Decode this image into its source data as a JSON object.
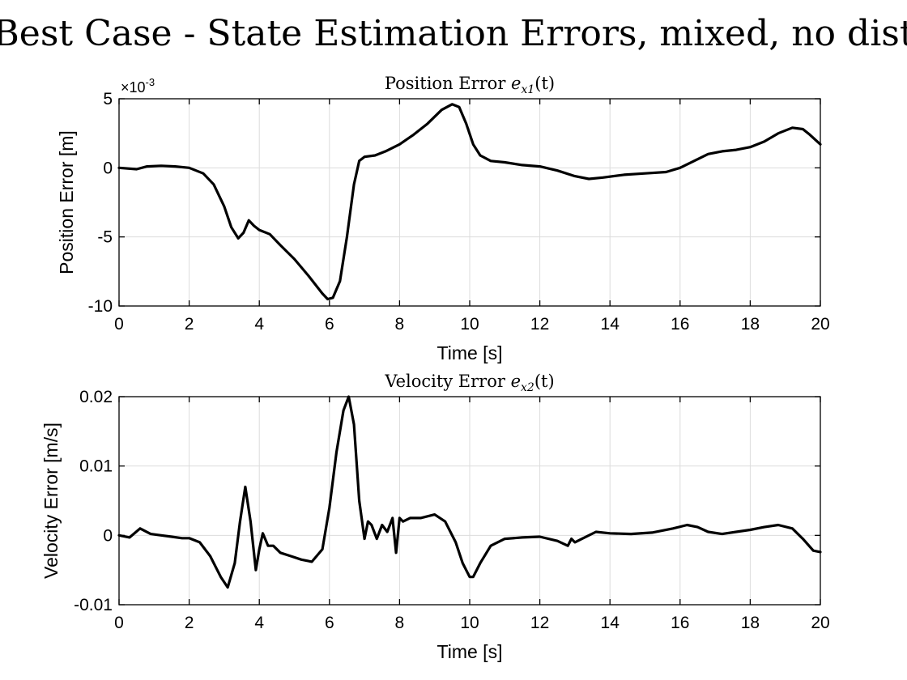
{
  "figure": {
    "title": "Best Case - State Estimation Errors, mixed, no dist"
  },
  "chart_data": [
    {
      "type": "line",
      "title": "Position Error e_x1(t)",
      "title_plain": "Position Error ",
      "title_var": "e",
      "title_sub": "x1",
      "title_tail": "(t)",
      "xlabel": "Time [s]",
      "ylabel": "Position Error [m]",
      "xlim": [
        0,
        20
      ],
      "ylim": [
        -10,
        5
      ],
      "y_exponent_label": "×10-3",
      "y_exponent_base": "×10",
      "y_exponent_power": "-3",
      "xticks": [
        0,
        2,
        4,
        6,
        8,
        10,
        12,
        14,
        16,
        18,
        20
      ],
      "yticks": [
        -10,
        -5,
        0,
        5
      ],
      "grid": true,
      "series": [
        {
          "color": "#000000",
          "x": [
            0,
            0.5,
            0.8,
            1.2,
            1.6,
            2.0,
            2.4,
            2.7,
            3.0,
            3.2,
            3.4,
            3.55,
            3.7,
            3.85,
            4.0,
            4.3,
            4.6,
            5.0,
            5.4,
            5.8,
            5.95,
            6.1,
            6.3,
            6.5,
            6.7,
            6.85,
            7.0,
            7.3,
            7.6,
            8.0,
            8.4,
            8.8,
            9.2,
            9.5,
            9.7,
            9.9,
            10.1,
            10.3,
            10.6,
            11.0,
            11.5,
            12.0,
            12.5,
            13.0,
            13.4,
            13.8,
            14.4,
            15.0,
            15.6,
            16.0,
            16.4,
            16.8,
            17.2,
            17.6,
            18.0,
            18.4,
            18.8,
            19.2,
            19.5,
            19.7,
            20.0
          ],
          "y": [
            0,
            -0.1,
            0.1,
            0.15,
            0.1,
            0,
            -0.4,
            -1.2,
            -2.8,
            -4.3,
            -5.1,
            -4.7,
            -3.8,
            -4.2,
            -4.5,
            -4.8,
            -5.6,
            -6.6,
            -7.8,
            -9.1,
            -9.5,
            -9.4,
            -8.2,
            -5.0,
            -1.2,
            0.5,
            0.8,
            0.9,
            1.2,
            1.7,
            2.4,
            3.2,
            4.2,
            4.6,
            4.4,
            3.2,
            1.7,
            0.9,
            0.5,
            0.4,
            0.2,
            0.1,
            -0.2,
            -0.6,
            -0.8,
            -0.7,
            -0.5,
            -0.4,
            -0.3,
            0,
            0.5,
            1.0,
            1.2,
            1.3,
            1.5,
            1.9,
            2.5,
            2.9,
            2.8,
            2.4,
            1.7
          ]
        }
      ]
    },
    {
      "type": "line",
      "title": "Velocity Error e_x2(t)",
      "title_plain": "Velocity Error ",
      "title_var": "e",
      "title_sub": "x2",
      "title_tail": "(t)",
      "xlabel": "Time [s]",
      "ylabel": "Velocity Error [m/s]",
      "xlim": [
        0,
        20
      ],
      "ylim": [
        -0.01,
        0.02
      ],
      "xticks": [
        0,
        2,
        4,
        6,
        8,
        10,
        12,
        14,
        16,
        18,
        20
      ],
      "yticks": [
        -0.01,
        0,
        0.01,
        0.02
      ],
      "ytick_labels": [
        "-0.01",
        "0",
        "0.01",
        "0.02"
      ],
      "grid": true,
      "series": [
        {
          "color": "#000000",
          "x": [
            0,
            0.3,
            0.6,
            0.9,
            1.2,
            1.5,
            1.8,
            2.0,
            2.3,
            2.6,
            2.9,
            3.1,
            3.3,
            3.45,
            3.6,
            3.75,
            3.9,
            4.0,
            4.1,
            4.25,
            4.4,
            4.6,
            4.9,
            5.2,
            5.5,
            5.8,
            6.0,
            6.2,
            6.4,
            6.55,
            6.7,
            6.85,
            7.0,
            7.1,
            7.2,
            7.35,
            7.5,
            7.65,
            7.8,
            7.9,
            8.0,
            8.1,
            8.3,
            8.6,
            9.0,
            9.3,
            9.6,
            9.8,
            10.0,
            10.1,
            10.3,
            10.6,
            11.0,
            11.5,
            12.0,
            12.5,
            12.8,
            12.9,
            13.0,
            13.2,
            13.6,
            14.0,
            14.6,
            15.2,
            15.8,
            16.2,
            16.5,
            16.8,
            17.2,
            17.6,
            18.0,
            18.4,
            18.8,
            19.2,
            19.5,
            19.8,
            20.0
          ],
          "y": [
            0,
            -0.0003,
            0.001,
            0.0002,
            0,
            -0.0002,
            -0.0004,
            -0.0004,
            -0.001,
            -0.003,
            -0.006,
            -0.0075,
            -0.004,
            0.002,
            0.007,
            0.002,
            -0.005,
            -0.002,
            0.0003,
            -0.0015,
            -0.0015,
            -0.0025,
            -0.003,
            -0.0035,
            -0.0038,
            -0.002,
            0.004,
            0.012,
            0.018,
            0.02,
            0.016,
            0.005,
            -0.0005,
            0.002,
            0.0015,
            -0.0005,
            0.0015,
            0.0005,
            0.0025,
            -0.0025,
            0.0025,
            0.002,
            0.0025,
            0.0025,
            0.003,
            0.002,
            -0.001,
            -0.004,
            -0.006,
            -0.006,
            -0.004,
            -0.0015,
            -0.0005,
            -0.0003,
            -0.0002,
            -0.0008,
            -0.0015,
            -0.0005,
            -0.001,
            -0.0005,
            0.0005,
            0.0003,
            0.0002,
            0.0004,
            0.001,
            0.0015,
            0.0012,
            0.0005,
            0.0002,
            0.0005,
            0.0008,
            0.0012,
            0.0015,
            0.001,
            -0.0005,
            -0.0022,
            -0.0024
          ]
        }
      ]
    }
  ]
}
